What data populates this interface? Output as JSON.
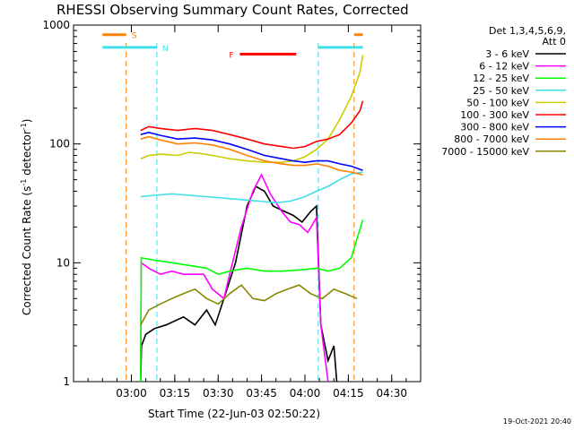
{
  "chart_data": {
    "type": "line",
    "title": "RHESSI Observing Summary Count Rates, Corrected",
    "xlabel": "Start Time (22-Jun-03 02:50:22)",
    "ylabel_main": "Corrected Count Rate (s",
    "ylabel_sup1": "-1",
    "ylabel_mid": " detector",
    "ylabel_sup2": "-1",
    "ylabel_end": ")",
    "y_scale": "log",
    "ylim": [
      1,
      1000
    ],
    "yticks": [
      "1",
      "10",
      "100",
      "1000"
    ],
    "xlim_minutes": [
      -10,
      30
    ],
    "xticks": [
      "03:00",
      "03:15",
      "03:30",
      "03:45",
      "04:00",
      "04:15",
      "04:30"
    ],
    "legend_title": [
      "Det 1,3,4,5,6,9,",
      "Att 0"
    ],
    "legend_position": "right",
    "timestamp": "19-Oct-2021 20:40",
    "flags": [
      {
        "label": "S",
        "color": "#ff8000"
      },
      {
        "label": "N",
        "color": "#40e0e8"
      },
      {
        "label": "F",
        "color": "#ff0000"
      }
    ],
    "series": [
      {
        "name": "3 - 6 keV",
        "color": "#000000"
      },
      {
        "name": "6 - 12 keV",
        "color": "#ff00ff"
      },
      {
        "name": "12 - 25 keV",
        "color": "#00ff00"
      },
      {
        "name": "25 - 50 keV",
        "color": "#40e0e8"
      },
      {
        "name": "50 - 100 keV",
        "color": "#cccc00"
      },
      {
        "name": "100 - 300 keV",
        "color": "#ff0000"
      },
      {
        "name": "300 - 800 keV",
        "color": "#0000ff"
      },
      {
        "name": "800 - 7000 keV",
        "color": "#ff8000"
      },
      {
        "name": "7000 - 15000 keV",
        "color": "#888800"
      }
    ],
    "curves": {
      "3 - 6 keV": [
        [
          3.2,
          1
        ],
        [
          3.5,
          2
        ],
        [
          5,
          2.5
        ],
        [
          8,
          2.8
        ],
        [
          12,
          3
        ],
        [
          18,
          3.5
        ],
        [
          22,
          3
        ],
        [
          26,
          4
        ],
        [
          29,
          3
        ],
        [
          32,
          5
        ],
        [
          36,
          10
        ],
        [
          40,
          30
        ],
        [
          43,
          44
        ],
        [
          46,
          40
        ],
        [
          49,
          30
        ],
        [
          53,
          27
        ],
        [
          56,
          25
        ],
        [
          59,
          22
        ],
        [
          62,
          27
        ],
        [
          64,
          30
        ],
        [
          65.5,
          3
        ],
        [
          68,
          1.5
        ],
        [
          70,
          2
        ],
        [
          71,
          1
        ]
      ],
      "6 - 12 keV": [
        [
          3.2,
          1
        ],
        [
          3.4,
          10
        ],
        [
          6,
          9
        ],
        [
          10,
          8
        ],
        [
          14,
          8.5
        ],
        [
          18,
          8
        ],
        [
          22,
          8
        ],
        [
          25,
          8
        ],
        [
          28,
          6
        ],
        [
          32,
          5
        ],
        [
          34,
          8
        ],
        [
          38,
          20
        ],
        [
          42,
          40
        ],
        [
          45,
          55
        ],
        [
          48,
          38
        ],
        [
          52,
          27
        ],
        [
          55,
          22
        ],
        [
          58,
          21
        ],
        [
          61,
          18
        ],
        [
          64,
          24
        ],
        [
          65.5,
          3
        ],
        [
          68,
          1
        ]
      ],
      "12 - 25 keV": [
        [
          3.2,
          1
        ],
        [
          3.4,
          11
        ],
        [
          8,
          10.5
        ],
        [
          14,
          10
        ],
        [
          20,
          9.5
        ],
        [
          26,
          9
        ],
        [
          30,
          8
        ],
        [
          34,
          8.5
        ],
        [
          40,
          9
        ],
        [
          46,
          8.5
        ],
        [
          52,
          8.5
        ],
        [
          58,
          8.7
        ],
        [
          64,
          9
        ],
        [
          68,
          8.5
        ],
        [
          72,
          9
        ],
        [
          76,
          11
        ],
        [
          78,
          16
        ],
        [
          80,
          23
        ]
      ],
      "25 - 50 keV": [
        [
          3.2,
          36
        ],
        [
          8,
          37
        ],
        [
          14,
          38
        ],
        [
          20,
          37
        ],
        [
          26,
          36
        ],
        [
          32,
          35
        ],
        [
          38,
          34
        ],
        [
          44,
          33
        ],
        [
          50,
          32
        ],
        [
          55,
          33
        ],
        [
          60,
          36
        ],
        [
          64,
          40
        ],
        [
          68,
          44
        ],
        [
          72,
          50
        ],
        [
          76,
          56
        ],
        [
          80,
          58
        ]
      ],
      "50 - 100 keV": [
        [
          3.2,
          75
        ],
        [
          6,
          80
        ],
        [
          10,
          82
        ],
        [
          16,
          80
        ],
        [
          20,
          85
        ],
        [
          24,
          83
        ],
        [
          28,
          80
        ],
        [
          34,
          75
        ],
        [
          40,
          72
        ],
        [
          46,
          70
        ],
        [
          52,
          70
        ],
        [
          56,
          72
        ],
        [
          60,
          78
        ],
        [
          64,
          90
        ],
        [
          68,
          110
        ],
        [
          72,
          160
        ],
        [
          76,
          250
        ],
        [
          79,
          400
        ],
        [
          80,
          560
        ]
      ],
      "100 - 300 keV": [
        [
          3.2,
          130
        ],
        [
          6,
          140
        ],
        [
          10,
          135
        ],
        [
          16,
          130
        ],
        [
          22,
          135
        ],
        [
          28,
          130
        ],
        [
          34,
          120
        ],
        [
          40,
          110
        ],
        [
          46,
          100
        ],
        [
          52,
          95
        ],
        [
          56,
          92
        ],
        [
          60,
          95
        ],
        [
          64,
          105
        ],
        [
          68,
          110
        ],
        [
          72,
          120
        ],
        [
          76,
          150
        ],
        [
          79,
          190
        ],
        [
          80,
          230
        ]
      ],
      "300 - 800 keV": [
        [
          3.2,
          120
        ],
        [
          6,
          125
        ],
        [
          10,
          118
        ],
        [
          16,
          110
        ],
        [
          22,
          112
        ],
        [
          28,
          108
        ],
        [
          34,
          100
        ],
        [
          40,
          90
        ],
        [
          46,
          80
        ],
        [
          52,
          75
        ],
        [
          56,
          72
        ],
        [
          60,
          70
        ],
        [
          64,
          72
        ],
        [
          68,
          72
        ],
        [
          72,
          68
        ],
        [
          76,
          65
        ],
        [
          80,
          60
        ]
      ],
      "800 - 7000 keV": [
        [
          3.2,
          110
        ],
        [
          6,
          115
        ],
        [
          10,
          108
        ],
        [
          16,
          100
        ],
        [
          22,
          102
        ],
        [
          28,
          98
        ],
        [
          34,
          90
        ],
        [
          40,
          80
        ],
        [
          46,
          72
        ],
        [
          52,
          68
        ],
        [
          56,
          66
        ],
        [
          60,
          66
        ],
        [
          64,
          68
        ],
        [
          68,
          65
        ],
        [
          72,
          60
        ],
        [
          76,
          58
        ],
        [
          80,
          55
        ]
      ],
      "7000 - 15000 keV": [
        [
          3.2,
          3
        ],
        [
          6,
          4
        ],
        [
          10,
          4.5
        ],
        [
          14,
          5
        ],
        [
          18,
          5.5
        ],
        [
          22,
          6
        ],
        [
          26,
          5
        ],
        [
          30,
          4.5
        ],
        [
          34,
          5.5
        ],
        [
          38,
          6.5
        ],
        [
          42,
          5
        ],
        [
          46,
          4.8
        ],
        [
          50,
          5.5
        ],
        [
          54,
          6
        ],
        [
          58,
          6.5
        ],
        [
          62,
          5.5
        ],
        [
          66,
          5
        ],
        [
          70,
          6
        ],
        [
          74,
          5.5
        ],
        [
          78,
          5
        ]
      ]
    },
    "bars": [
      {
        "color": "#ff8000",
        "y": 830,
        "x": [
          -10,
          -1.8
        ]
      },
      {
        "color": "#ff8000",
        "y": 830,
        "x": [
          77,
          80
        ]
      },
      {
        "color": "#40e0e8",
        "y": 650,
        "x": [
          -10,
          8.8
        ]
      },
      {
        "color": "#40e0e8",
        "y": 650,
        "x": [
          64.6,
          80
        ]
      },
      {
        "color": "#ff0000",
        "y": 570,
        "x": [
          37.5,
          57
        ]
      }
    ],
    "vlines": [
      {
        "color": "#ff8000",
        "x": -1.8
      },
      {
        "color": "#40e0e8",
        "x": 8.8
      },
      {
        "color": "#40e0e8",
        "x": 64.6
      },
      {
        "color": "#ff8000",
        "x": 77
      }
    ]
  }
}
